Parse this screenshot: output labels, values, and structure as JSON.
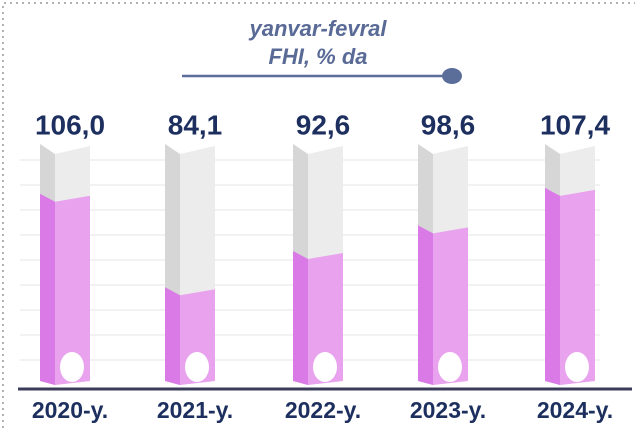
{
  "chart_data": {
    "type": "thermometer",
    "title": "yanvar-fevral",
    "subtitle": "FHI, % da",
    "categories": [
      "2020-y.",
      "2021-y.",
      "2022-y.",
      "2023-y.",
      "2024-y."
    ],
    "values": [
      106.0,
      84.1,
      92.6,
      98.6,
      107.4
    ],
    "value_labels": [
      "106,0",
      "84,1",
      "92,6",
      "98,6",
      "107,4"
    ],
    "color": "#e9a3ee"
  }
}
